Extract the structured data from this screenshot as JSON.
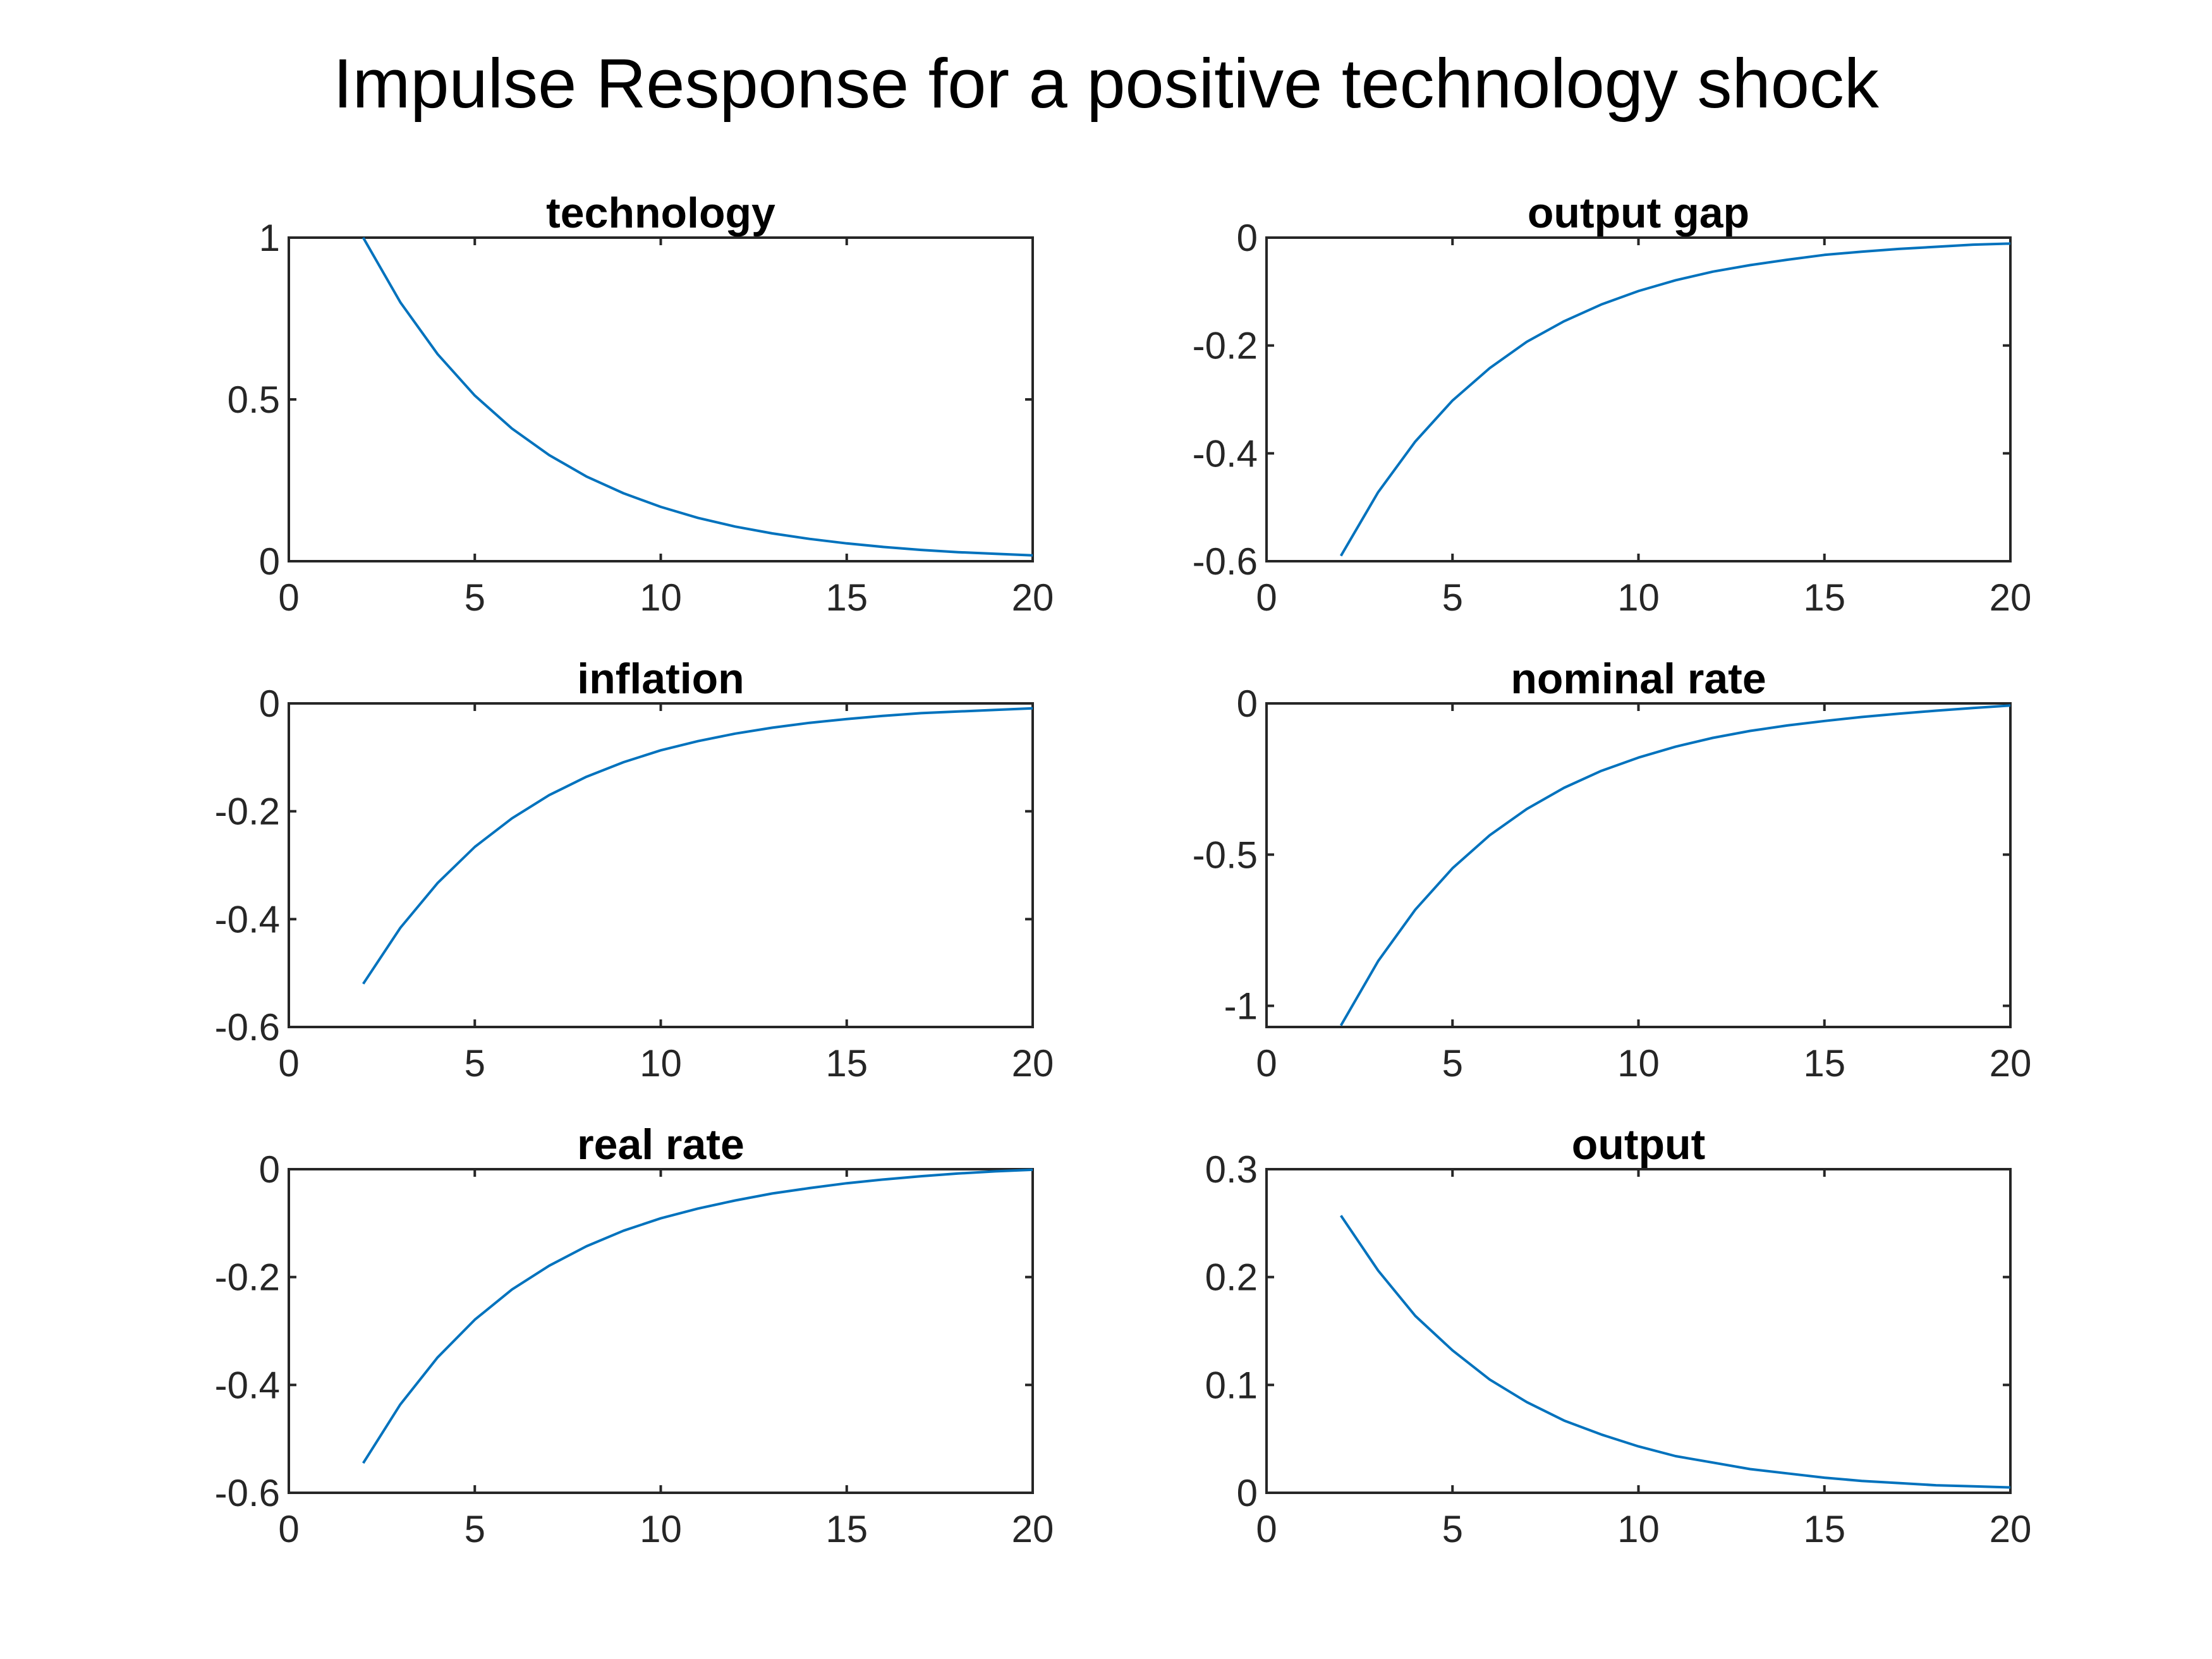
{
  "figure": {
    "title": "Impulse Response for a positive technology shock"
  },
  "chart_data": [
    {
      "type": "line",
      "title": "technology",
      "xlim": [
        0,
        20
      ],
      "ylim": [
        0,
        1
      ],
      "xticks": [
        0,
        5,
        10,
        15,
        20
      ],
      "yticks": [
        0,
        0.5,
        1
      ],
      "x": [
        2,
        3,
        4,
        5,
        6,
        7,
        8,
        9,
        10,
        11,
        12,
        13,
        14,
        15,
        16,
        17,
        18,
        19,
        20
      ],
      "y": [
        1,
        0.8,
        0.64,
        0.512,
        0.41,
        0.328,
        0.262,
        0.21,
        0.168,
        0.134,
        0.107,
        0.086,
        0.069,
        0.055,
        0.044,
        0.035,
        0.028,
        0.023,
        0.018
      ],
      "color": "#0072BD"
    },
    {
      "type": "line",
      "title": "output gap",
      "xlim": [
        0,
        20
      ],
      "ylim": [
        -0.6,
        0
      ],
      "xticks": [
        0,
        5,
        10,
        15,
        20
      ],
      "yticks": [
        -0.6,
        -0.4,
        -0.2,
        0
      ],
      "x": [
        2,
        3,
        4,
        5,
        6,
        7,
        8,
        9,
        10,
        11,
        12,
        13,
        14,
        15,
        16,
        17,
        18,
        19,
        20
      ],
      "y": [
        -0.59,
        -0.472,
        -0.378,
        -0.302,
        -0.242,
        -0.193,
        -0.155,
        -0.124,
        -0.099,
        -0.079,
        -0.063,
        -0.051,
        -0.041,
        -0.032,
        -0.026,
        -0.021,
        -0.017,
        -0.013,
        -0.011
      ],
      "color": "#0072BD"
    },
    {
      "type": "line",
      "title": "inflation",
      "xlim": [
        0,
        20
      ],
      "ylim": [
        -0.6,
        0
      ],
      "xticks": [
        0,
        5,
        10,
        15,
        20
      ],
      "yticks": [
        -0.6,
        -0.4,
        -0.2,
        0
      ],
      "x": [
        2,
        3,
        4,
        5,
        6,
        7,
        8,
        9,
        10,
        11,
        12,
        13,
        14,
        15,
        16,
        17,
        18,
        19,
        20
      ],
      "y": [
        -0.52,
        -0.416,
        -0.333,
        -0.266,
        -0.213,
        -0.17,
        -0.136,
        -0.109,
        -0.087,
        -0.07,
        -0.056,
        -0.045,
        -0.036,
        -0.029,
        -0.023,
        -0.018,
        -0.015,
        -0.012,
        -0.009
      ],
      "color": "#0072BD"
    },
    {
      "type": "line",
      "title": "nominal rate",
      "xlim": [
        0,
        20
      ],
      "ylim": [
        -1.07,
        0
      ],
      "xticks": [
        0,
        5,
        10,
        15,
        20
      ],
      "yticks": [
        -1,
        -0.5,
        0
      ],
      "x": [
        2,
        3,
        4,
        5,
        6,
        7,
        8,
        9,
        10,
        11,
        12,
        13,
        14,
        15,
        16,
        17,
        18,
        19,
        20
      ],
      "y": [
        -1.065,
        -0.852,
        -0.682,
        -0.545,
        -0.436,
        -0.349,
        -0.279,
        -0.223,
        -0.179,
        -0.143,
        -0.114,
        -0.091,
        -0.073,
        -0.058,
        -0.045,
        -0.034,
        -0.024,
        -0.015,
        -0.007
      ],
      "color": "#0072BD"
    },
    {
      "type": "line",
      "title": "real rate",
      "xlim": [
        0,
        20
      ],
      "ylim": [
        -0.6,
        0
      ],
      "xticks": [
        0,
        5,
        10,
        15,
        20
      ],
      "yticks": [
        -0.6,
        -0.4,
        -0.2,
        0
      ],
      "x": [
        2,
        3,
        4,
        5,
        6,
        7,
        8,
        9,
        10,
        11,
        12,
        13,
        14,
        15,
        16,
        17,
        18,
        19,
        20
      ],
      "y": [
        -0.545,
        -0.436,
        -0.349,
        -0.279,
        -0.223,
        -0.179,
        -0.143,
        -0.114,
        -0.091,
        -0.073,
        -0.058,
        -0.045,
        -0.035,
        -0.026,
        -0.019,
        -0.013,
        -0.008,
        -0.004,
        -0.001
      ],
      "color": "#0072BD"
    },
    {
      "type": "line",
      "title": "output",
      "xlim": [
        0,
        20
      ],
      "ylim": [
        0,
        0.3
      ],
      "xticks": [
        0,
        5,
        10,
        15,
        20
      ],
      "yticks": [
        0,
        0.1,
        0.2,
        0.3
      ],
      "x": [
        2,
        3,
        4,
        5,
        6,
        7,
        8,
        9,
        10,
        11,
        12,
        13,
        14,
        15,
        16,
        17,
        18,
        19,
        20
      ],
      "y": [
        0.257,
        0.206,
        0.164,
        0.132,
        0.105,
        0.084,
        0.067,
        0.054,
        0.043,
        0.034,
        0.028,
        0.022,
        0.018,
        0.014,
        0.011,
        0.009,
        0.007,
        0.006,
        0.005
      ],
      "color": "#0072BD"
    }
  ]
}
